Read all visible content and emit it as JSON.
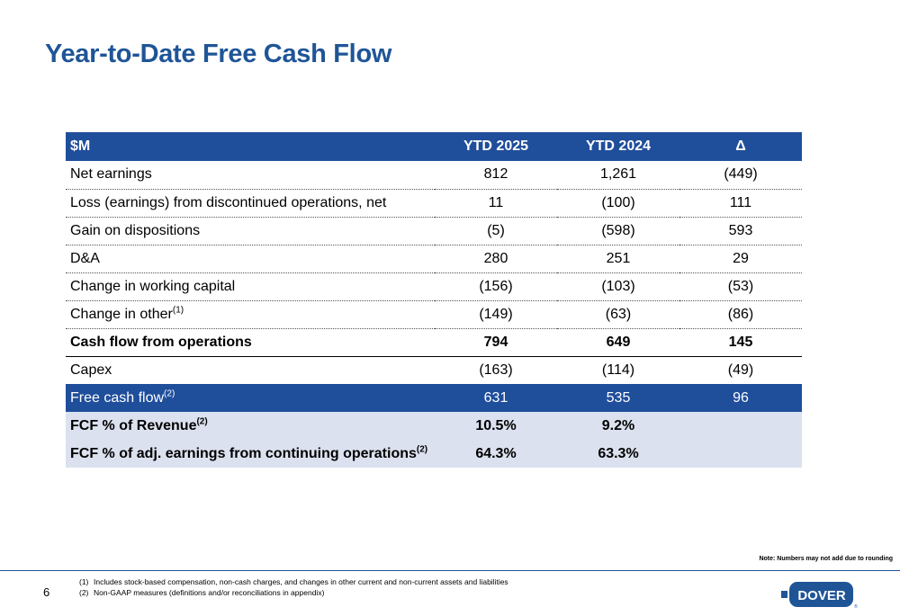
{
  "title": "Year-to-Date Free Cash Flow",
  "table": {
    "headers": {
      "label": "$M",
      "ytd2025": "YTD 2025",
      "ytd2024": "YTD 2024",
      "delta": "Δ"
    },
    "rows": [
      {
        "label": "Net earnings",
        "ytd2025": "812",
        "ytd2024": "1,261",
        "delta": "(449)"
      },
      {
        "label": "Loss (earnings) from discontinued operations, net",
        "ytd2025": "11",
        "ytd2024": "(100)",
        "delta": "111"
      },
      {
        "label": "Gain on dispositions",
        "ytd2025": "(5)",
        "ytd2024": "(598)",
        "delta": "593"
      },
      {
        "label": "D&A",
        "ytd2025": "280",
        "ytd2024": "251",
        "delta": "29"
      },
      {
        "label": "Change in working capital",
        "ytd2025": "(156)",
        "ytd2024": "(103)",
        "delta": "(53)"
      },
      {
        "label": "Change in other",
        "sup": "(1)",
        "ytd2025": "(149)",
        "ytd2024": "(63)",
        "delta": "(86)"
      },
      {
        "label": "Cash flow from operations",
        "ytd2025": "794",
        "ytd2024": "649",
        "delta": "145"
      },
      {
        "label": "Capex",
        "ytd2025": "(163)",
        "ytd2024": "(114)",
        "delta": "(49)"
      },
      {
        "label": "Free cash flow",
        "sup": "(2)",
        "ytd2025": "631",
        "ytd2024": "535",
        "delta": "96"
      },
      {
        "label": "FCF % of Revenue",
        "sup": "(2)",
        "ytd2025": "10.5%",
        "ytd2024": "9.2%",
        "delta": ""
      },
      {
        "label": "FCF % of adj. earnings from continuing operations",
        "sup": "(2)",
        "ytd2025": "64.3%",
        "ytd2024": "63.3%",
        "delta": ""
      }
    ]
  },
  "note": "Note: Numbers may not add due to rounding",
  "page_number": "6",
  "footnotes": [
    {
      "num": "(1)",
      "text": "Includes stock-based compensation, non-cash charges, and changes in other current and non-current assets and liabilities"
    },
    {
      "num": "(2)",
      "text": "Non-GAAP measures (definitions and/or reconciliations in appendix)"
    }
  ],
  "logo": {
    "text": "DOVER",
    "mark": "®"
  },
  "colors": {
    "brand_blue": "#1f4e9b",
    "title_blue": "#1f5597",
    "light_band": "#dce1ef"
  }
}
